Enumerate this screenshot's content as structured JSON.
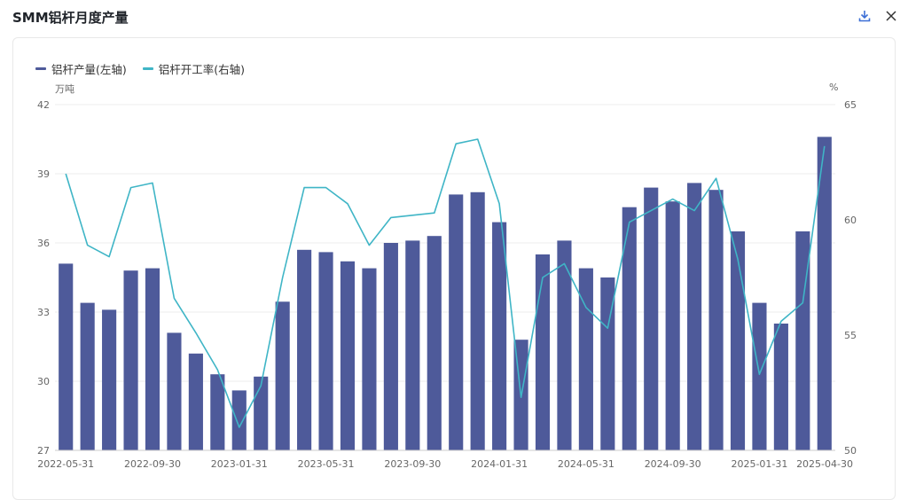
{
  "title": "SMM铝杆月度产量",
  "icons": {
    "download": "download-icon",
    "close": "close-icon"
  },
  "colors": {
    "bar": "#4e5a9a",
    "line": "#3fb5c6",
    "grid": "#ececec",
    "axis_text": "#666666"
  },
  "units": {
    "left": "万吨",
    "right": "%"
  },
  "chart_data": {
    "type": "bar",
    "categories": [
      "2022-05-31",
      "2022-06-30",
      "2022-07-31",
      "2022-08-31",
      "2022-09-30",
      "2022-10-31",
      "2022-11-30",
      "2022-12-31",
      "2023-01-31",
      "2023-02-28",
      "2023-03-31",
      "2023-04-30",
      "2023-05-31",
      "2023-06-30",
      "2023-07-31",
      "2023-08-31",
      "2023-09-30",
      "2023-10-31",
      "2023-11-30",
      "2023-12-31",
      "2024-01-31",
      "2024-02-29",
      "2024-03-31",
      "2024-04-30",
      "2024-05-31",
      "2024-06-30",
      "2024-07-31",
      "2024-08-31",
      "2024-09-30",
      "2024-10-31",
      "2024-11-30",
      "2024-12-31",
      "2025-01-31",
      "2025-02-28",
      "2025-03-31",
      "2025-04-30"
    ],
    "x_tick_labels": [
      "2022-05-31",
      "2022-09-30",
      "2023-01-31",
      "2023-05-31",
      "2023-09-30",
      "2024-01-31",
      "2024-05-31",
      "2024-09-30",
      "2025-01-31",
      "2025-04-30"
    ],
    "series": [
      {
        "name": "铝杆产量(左轴)",
        "axis": "left",
        "type": "bar",
        "values": [
          35.1,
          33.4,
          33.1,
          34.8,
          34.9,
          32.1,
          31.2,
          30.3,
          29.6,
          30.2,
          33.45,
          35.7,
          35.6,
          35.2,
          34.9,
          36.0,
          36.1,
          36.3,
          38.1,
          38.2,
          36.9,
          31.8,
          35.5,
          36.1,
          34.9,
          34.5,
          37.55,
          38.4,
          37.8,
          38.6,
          38.3,
          36.5,
          33.4,
          32.5,
          36.5,
          40.6
        ]
      },
      {
        "name": "铝杆开工率(右轴)",
        "axis": "right",
        "type": "line",
        "values": [
          62.0,
          58.9,
          58.4,
          61.4,
          61.6,
          56.6,
          55.1,
          53.5,
          51.0,
          52.8,
          57.5,
          61.4,
          61.4,
          60.7,
          58.9,
          60.1,
          60.2,
          60.3,
          63.3,
          63.5,
          60.7,
          52.3,
          57.5,
          58.1,
          56.2,
          55.3,
          59.9,
          60.4,
          60.9,
          60.4,
          61.8,
          58.3,
          53.3,
          55.6,
          56.4,
          63.2
        ]
      }
    ],
    "y_left": {
      "min": 27,
      "max": 42,
      "ticks": [
        27,
        30,
        33,
        36,
        39,
        42
      ]
    },
    "y_right": {
      "min": 50,
      "max": 65,
      "ticks": [
        50,
        55,
        60,
        65
      ]
    },
    "grid": true,
    "legend_position": "top-left"
  }
}
